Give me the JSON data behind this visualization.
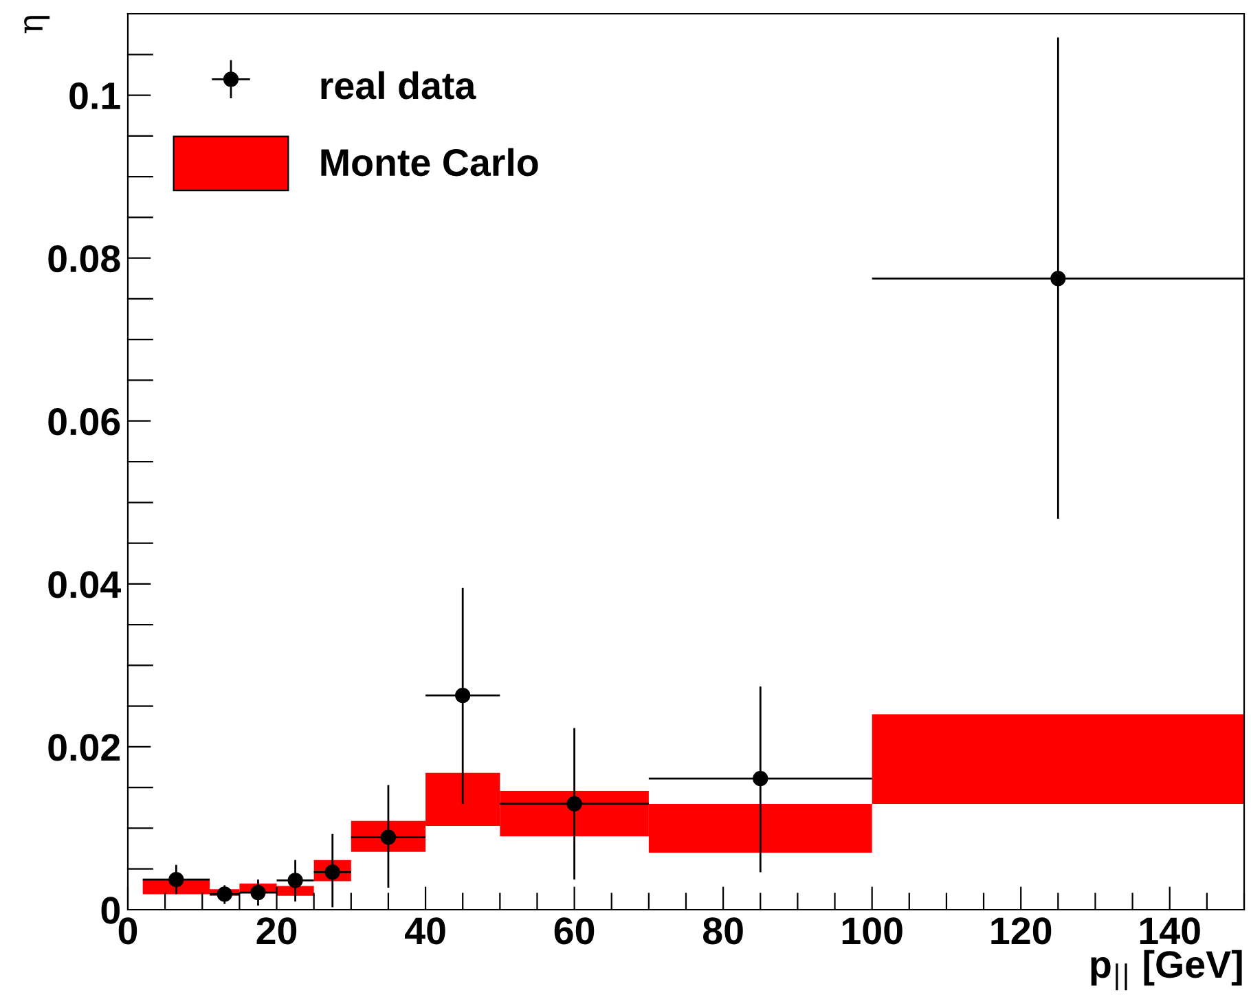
{
  "chart_data": {
    "type": "scatter",
    "xlabel": "p$_{||}$ [GeV]",
    "ylabel": "η",
    "xlim": [
      0,
      150
    ],
    "xticks": [
      0,
      20,
      40,
      60,
      80,
      100,
      120,
      140
    ],
    "ylim": [
      0,
      0.11
    ],
    "yticks": [
      0,
      0.02,
      0.04,
      0.06,
      0.08,
      {
        "value": 0.1,
        "label": "0.1"
      }
    ],
    "legend": "top left",
    "grid": false,
    "series": [
      {
        "name": "Monte Carlo",
        "type": "histogram",
        "color": "#ff0000",
        "bins": [
          2,
          11,
          15,
          20,
          25,
          30,
          40,
          50,
          70,
          100,
          150
        ],
        "base": [
          0.0019,
          0.0017,
          0.0022,
          0.0017,
          0.0035,
          0.0071,
          0.0103,
          0.009,
          0.007,
          0.013
        ],
        "values": [
          0.0018,
          0.0008,
          0.001,
          0.0012,
          0.0026,
          0.0038,
          0.0065,
          0.0056,
          0.006,
          0.011
        ]
      },
      {
        "name": "real data",
        "color": "#000000",
        "marker": "circle",
        "x": [
          6.5,
          13,
          17.5,
          22.5,
          27.5,
          35,
          45,
          60,
          85,
          125
        ],
        "values": [
          0.0037,
          0.0019,
          0.0021,
          0.0036,
          0.0046,
          0.0089,
          0.0263,
          0.013,
          0.0161,
          0.0775
        ],
        "errors": [
          [
            0.0019,
            0.0055
          ],
          [
            0.0007,
            0.003
          ],
          [
            0.0005,
            0.0037
          ],
          [
            0.001,
            0.0061
          ],
          [
            0.0003,
            0.0093
          ],
          [
            0.0027,
            0.0153
          ],
          [
            0.013,
            0.0395
          ],
          [
            0.0037,
            0.0223
          ],
          [
            0.0046,
            0.0274
          ],
          [
            0.048,
            0.1071
          ]
        ],
        "xerrors": [
          [
            2,
            11
          ],
          [
            11,
            15
          ],
          [
            15,
            20
          ],
          [
            20,
            25
          ],
          [
            25,
            30
          ],
          [
            30,
            40
          ],
          [
            40,
            50
          ],
          [
            50,
            70
          ],
          [
            70,
            100
          ],
          [
            100,
            150
          ]
        ]
      }
    ]
  }
}
